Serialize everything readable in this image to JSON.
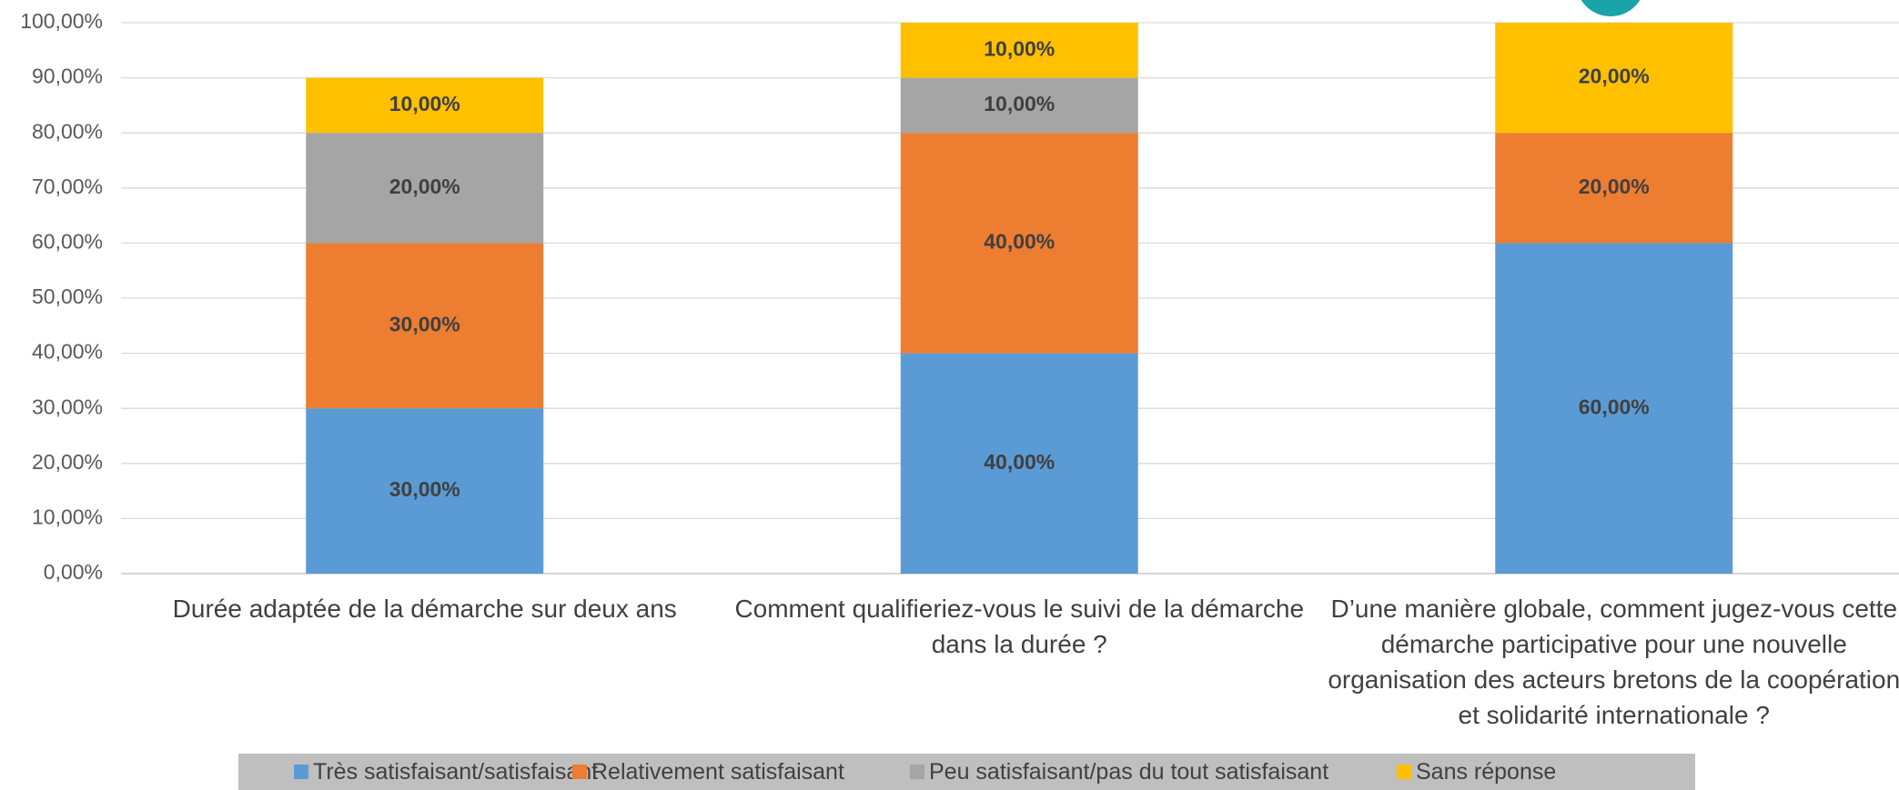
{
  "chart_data": {
    "type": "stacked_bar",
    "categories": [
      "Durée adaptée de la démarche sur deux ans",
      "Comment qualifieriez-vous le suivi de la démarche dans la durée ?",
      "D’une manière globale, comment jugez-vous cette démarche participative pour une nouvelle organisation des acteurs bretons de la coopération et solidarité internationale ?"
    ],
    "series": [
      {
        "name": "Très satisfaisant/satisfaisant",
        "color": "#5b9bd5",
        "values": [
          30,
          40,
          60
        ],
        "value_labels": [
          "30,00%",
          "40,00%",
          "60,00%"
        ]
      },
      {
        "name": "Relativement satisfaisant",
        "color": "#ed7d31",
        "values": [
          30,
          40,
          20
        ],
        "value_labels": [
          "30,00%",
          "40,00%",
          "20,00%"
        ]
      },
      {
        "name": "Peu satisfaisant/pas du tout satisfaisant",
        "color": "#a5a5a5",
        "values": [
          20,
          10,
          0
        ],
        "value_labels": [
          "20,00%",
          "10,00%",
          null
        ]
      },
      {
        "name": "Sans réponse",
        "color": "#ffc000",
        "values": [
          10,
          10,
          20
        ],
        "value_labels": [
          "10,00%",
          "10,00%",
          "20,00%"
        ]
      }
    ],
    "ylim": [
      0,
      100
    ],
    "yticks": [
      {
        "value": 0,
        "label": "0,00%"
      },
      {
        "value": 10,
        "label": "10,00%"
      },
      {
        "value": 20,
        "label": "20,00%"
      },
      {
        "value": 30,
        "label": "30,00%"
      },
      {
        "value": 40,
        "label": "40,00%"
      },
      {
        "value": 50,
        "label": "50,00%"
      },
      {
        "value": 60,
        "label": "60,00%"
      },
      {
        "value": 70,
        "label": "70,00%"
      },
      {
        "value": 80,
        "label": "80,00%"
      },
      {
        "value": 90,
        "label": "90,00%"
      },
      {
        "value": 100,
        "label": "100,00%"
      }
    ],
    "grid": true,
    "legend": "bottom"
  }
}
